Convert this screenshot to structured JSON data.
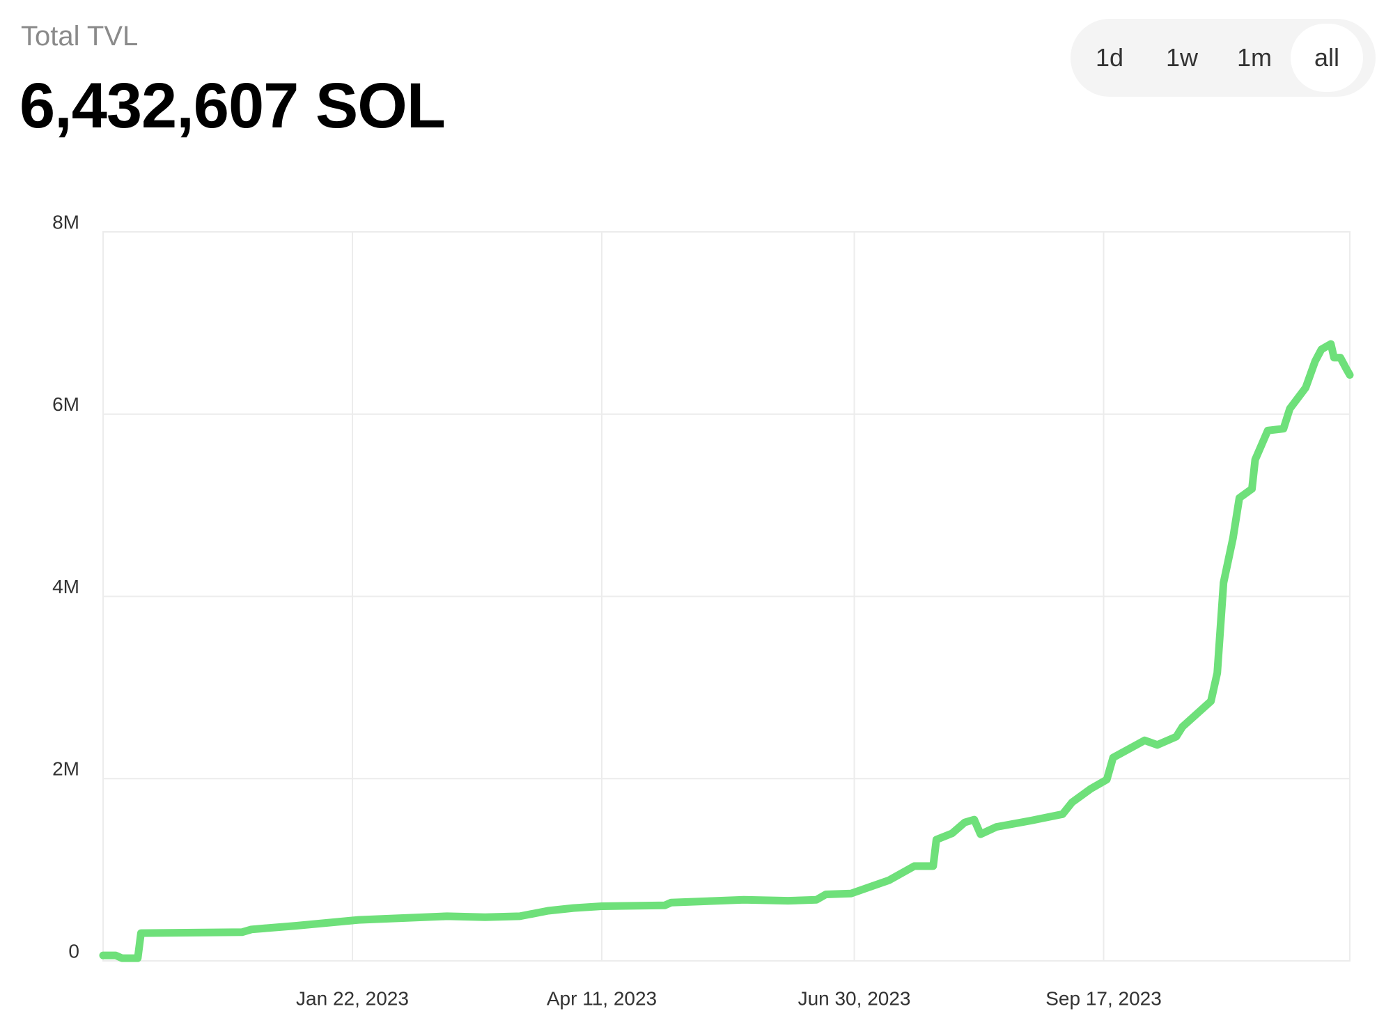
{
  "header": {
    "label": "Total TVL",
    "value": "6,432,607 SOL"
  },
  "range_buttons": [
    "1d",
    "1w",
    "1m",
    "all"
  ],
  "selected_range": 3,
  "chart_data": {
    "type": "line",
    "color": "#6ee07a",
    "grid": true,
    "x": [
      "2022-11-04",
      "2022-11-08",
      "2022-11-10",
      "2022-11-15",
      "2022-11-16",
      "2022-12-18",
      "2022-12-21",
      "2023-01-04",
      "2023-01-24",
      "2023-02-21",
      "2023-03-05",
      "2023-03-16",
      "2023-03-25",
      "2023-04-02",
      "2023-04-11",
      "2023-05-01",
      "2023-05-03",
      "2023-05-26",
      "2023-06-09",
      "2023-06-18",
      "2023-06-21",
      "2023-06-29",
      "2023-07-11",
      "2023-07-19",
      "2023-07-25",
      "2023-07-26",
      "2023-07-31",
      "2023-08-04",
      "2023-08-07",
      "2023-08-09",
      "2023-08-14",
      "2023-08-25",
      "2023-09-04",
      "2023-09-07",
      "2023-09-13",
      "2023-09-18",
      "2023-09-20",
      "2023-09-30",
      "2023-10-04",
      "2023-10-10",
      "2023-10-12",
      "2023-10-21",
      "2023-10-23",
      "2023-10-25",
      "2023-10-28",
      "2023-10-30",
      "2023-11-03",
      "2023-11-04",
      "2023-11-08",
      "2023-11-13",
      "2023-11-15",
      "2023-11-20",
      "2023-11-23",
      "2023-11-25",
      "2023-11-28",
      "2023-11-29",
      "2023-12-01",
      "2023-12-03",
      "2023-12-04"
    ],
    "values": [
      60000,
      60000,
      30000,
      30000,
      305000,
      315000,
      345000,
      385000,
      450000,
      490000,
      480000,
      490000,
      550000,
      580000,
      600000,
      610000,
      640000,
      670000,
      660000,
      670000,
      730000,
      740000,
      885000,
      1040000,
      1040000,
      1330000,
      1400000,
      1520000,
      1550000,
      1390000,
      1470000,
      1540000,
      1610000,
      1740000,
      1890000,
      1990000,
      2230000,
      2420000,
      2370000,
      2460000,
      2570000,
      2850000,
      3160000,
      4150000,
      4640000,
      5080000,
      5180000,
      5500000,
      5820000,
      5840000,
      6060000,
      6290000,
      6580000,
      6710000,
      6770000,
      6620000,
      6620000,
      6490000,
      6430000
    ],
    "xlim": [
      "2022-11-04",
      "2023-12-04"
    ],
    "xticks": [
      {
        "value": "2023-01-22",
        "label": "Jan 22, 2023"
      },
      {
        "value": "2023-04-11",
        "label": "Apr 11, 2023"
      },
      {
        "value": "2023-06-30",
        "label": "Jun 30, 2023"
      },
      {
        "value": "2023-09-17",
        "label": "Sep 17, 2023"
      }
    ],
    "ylim": [
      0,
      8000000
    ],
    "yticks": [
      0,
      {
        "value": 2000000,
        "label": "2M"
      },
      {
        "value": 4000000,
        "label": "4M"
      },
      {
        "value": 6000000,
        "label": "6M"
      },
      {
        "value": 8000000,
        "label": "8M"
      }
    ]
  }
}
